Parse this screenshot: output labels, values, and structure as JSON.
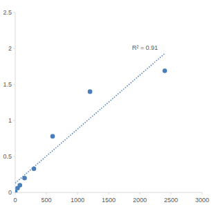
{
  "chart_data": {
    "type": "scatter",
    "annotation": "R² = 0.91",
    "xlim": [
      0,
      3000
    ],
    "xticks": [
      0,
      500,
      1000,
      1500,
      2000,
      2500,
      3000
    ],
    "ylim": [
      0,
      2.5
    ],
    "yticks": [
      0,
      0.5,
      1,
      1.5,
      2,
      2.5
    ],
    "grid": false,
    "series": [
      {
        "type": "scatter",
        "color": "#4a7ebb",
        "marker": "circle",
        "x": [
          0,
          37.5,
          75,
          150,
          300,
          600,
          1200,
          2400
        ],
        "values": [
          0.01,
          0.06,
          0.1,
          0.2,
          0.33,
          0.78,
          1.4,
          1.69
        ]
      },
      {
        "type": "line",
        "color": "#4a7ebb",
        "line_style": "dotted",
        "x": [
          0,
          2400
        ],
        "values": [
          0.13,
          1.93
        ]
      }
    ]
  }
}
